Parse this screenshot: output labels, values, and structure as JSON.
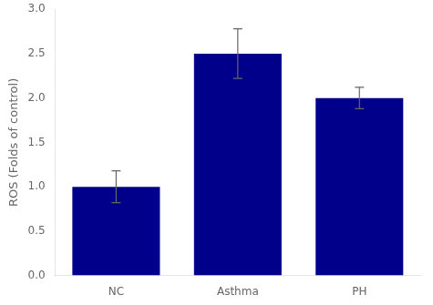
{
  "chart_data": {
    "type": "bar",
    "categories": [
      "NC",
      "Asthma",
      "PH"
    ],
    "values": [
      1.0,
      2.5,
      2.0
    ],
    "errors": [
      0.18,
      0.28,
      0.12
    ],
    "color": "#00008B",
    "ylabel": "ROS (Folds of control)",
    "ylim": [
      0.0,
      3.0
    ],
    "yticks": [
      {
        "value": 0.0,
        "label": "0.0"
      },
      0.5,
      {
        "value": 1.0,
        "label": "1.0"
      },
      1.5,
      {
        "value": 2.0,
        "label": "2.0"
      },
      2.5,
      {
        "value": 3.0,
        "label": "3.0"
      }
    ],
    "grid": false
  }
}
